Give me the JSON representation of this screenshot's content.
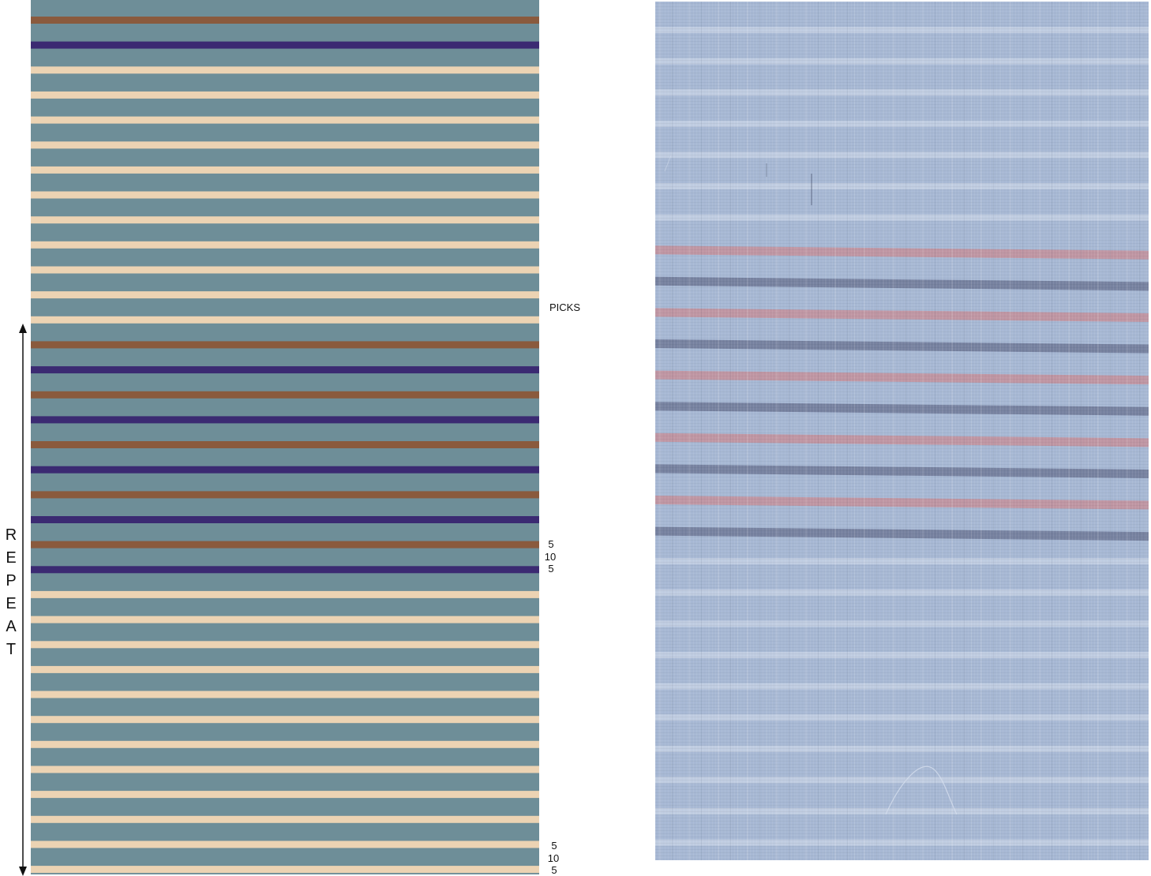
{
  "colors": {
    "ground": "#6e8e98",
    "cream": "#ecd3b3",
    "rust": "#8a5a3d",
    "navy": "#3b2a72",
    "fabric_base": "#a7b8d4",
    "fabric_light": "#c7d3e6",
    "fabric_red": "#c38f9a",
    "fabric_blue": "#6f7897"
  },
  "labels": {
    "picks": "PICKS",
    "repeat_letters": [
      "R",
      "E",
      "P",
      "E",
      "A",
      "T"
    ],
    "upper_counts": [
      "5",
      "10",
      "5"
    ],
    "lower_counts": [
      "5",
      "10",
      "5"
    ]
  },
  "icons": {
    "repeat_arrow": "double-headed-vertical-arrow"
  },
  "stripe_sequence": [
    "rust",
    "navy",
    "cream",
    "cream",
    "cream",
    "cream",
    "cream",
    "cream",
    "cream",
    "cream",
    "cream",
    "cream",
    "cream",
    "rust",
    "navy",
    "rust",
    "navy",
    "rust",
    "navy",
    "rust",
    "navy",
    "rust",
    "navy",
    "cream",
    "cream",
    "cream",
    "cream",
    "cream",
    "cream",
    "cream",
    "cream",
    "cream",
    "cream",
    "cream",
    "cream"
  ],
  "fabric_sequence": [
    "light",
    "light",
    "light",
    "light",
    "light",
    "light",
    "light",
    "red",
    "blue",
    "red",
    "blue",
    "red",
    "blue",
    "red",
    "blue",
    "red",
    "blue",
    "light",
    "light",
    "light",
    "light",
    "light",
    "light",
    "light",
    "light",
    "light",
    "light",
    "light"
  ]
}
